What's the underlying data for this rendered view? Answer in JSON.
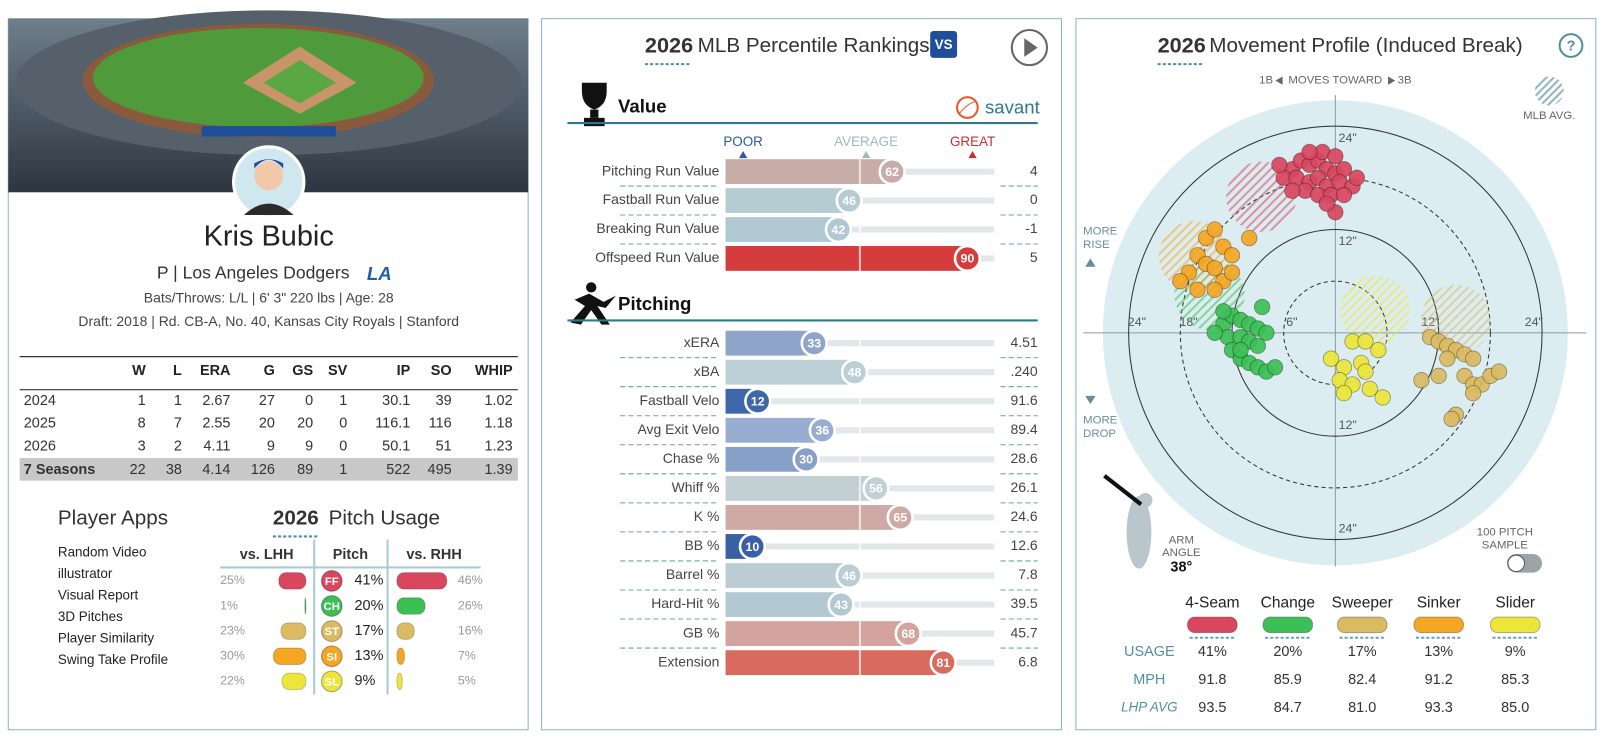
{
  "player": {
    "name": "Kris Bubic",
    "position_team": "P | Los Angeles Dodgers",
    "team_logo": "LA",
    "bio": "Bats/Throws: L/L | 6' 3\" 220 lbs | Age: 28",
    "draft": "Draft: 2018 | Rd. CB-A, No. 40, Kansas City Royals | Stanford"
  },
  "stats_table": {
    "headers": [
      "W",
      "L",
      "ERA",
      "G",
      "GS",
      "SV",
      "IP",
      "SO",
      "WHIP"
    ],
    "rows": [
      [
        "2024",
        1,
        1,
        2.67,
        27,
        0,
        1,
        30.1,
        39,
        1.02
      ],
      [
        "2025",
        8,
        7,
        2.55,
        20,
        20,
        0,
        116.1,
        116,
        1.18
      ],
      [
        "2026",
        3,
        2,
        4.11,
        9,
        9,
        0,
        50.1,
        51,
        1.23
      ]
    ],
    "total": [
      "7 Seasons",
      22,
      38,
      4.14,
      126,
      89,
      1,
      522,
      495,
      1.39
    ]
  },
  "player_apps": {
    "title": "Player Apps",
    "items": [
      "Random Video",
      "illustrator",
      "Visual Report",
      "3D Pitches",
      "Player Similarity",
      "Swing Take Profile"
    ]
  },
  "pitch_usage": {
    "year": "2026",
    "title": "Pitch Usage",
    "headers": [
      "vs. LHH",
      "Pitch",
      "vs. RHH"
    ],
    "codes": [
      "FF",
      "CH",
      "ST",
      "SI",
      "SL"
    ],
    "colors": [
      "#d9475f",
      "#3cc055",
      "#dbbb62",
      "#f5a623",
      "#ece63a"
    ],
    "vs_lhh": {
      "values": [
        25,
        1,
        23,
        30,
        22
      ],
      "value_labels": [
        "25%",
        "1%",
        "23%",
        "30%",
        "22%"
      ]
    },
    "overall": {
      "values": [
        41,
        20,
        17,
        13,
        9
      ],
      "value_labels": [
        "41%",
        "20%",
        "17%",
        "13%",
        "9%"
      ]
    },
    "vs_rhh": {
      "values": [
        46,
        26,
        16,
        7,
        5
      ],
      "value_labels": [
        "46%",
        "26%",
        "16%",
        "7%",
        "5%"
      ]
    }
  },
  "percentile_rankings": {
    "year": "2026",
    "title": "MLB Percentile Rankings",
    "logo": "VS",
    "source": "savant",
    "scale_labels": [
      "POOR",
      "AVERAGE",
      "GREAT"
    ],
    "sections": [
      {
        "title": "Value",
        "metrics": [
          {
            "label": "Pitching Run Value",
            "percentile": 62,
            "stat": "4",
            "color": "#c8aca7"
          },
          {
            "label": "Fastball Run Value",
            "percentile": 46,
            "stat": "0",
            "color": "#b6ccd3"
          },
          {
            "label": "Breaking Run Value",
            "percentile": 42,
            "stat": "-1",
            "color": "#b0c8d1"
          },
          {
            "label": "Offspeed Run Value",
            "percentile": 90,
            "stat": "5",
            "color": "#d63c3c"
          }
        ]
      },
      {
        "title": "Pitching",
        "metrics": [
          {
            "label": "xERA",
            "percentile": 33,
            "stat": "4.51",
            "color": "#8ea5c9"
          },
          {
            "label": "xBA",
            "percentile": 48,
            "stat": ".240",
            "color": "#bccfd6"
          },
          {
            "label": "Fastball Velo",
            "percentile": 12,
            "stat": "91.6",
            "color": "#3f66aa"
          },
          {
            "label": "Avg Exit Velo",
            "percentile": 36,
            "stat": "89.4",
            "color": "#98aed0"
          },
          {
            "label": "Chase %",
            "percentile": 30,
            "stat": "28.6",
            "color": "#87a0c8"
          },
          {
            "label": "Whiff %",
            "percentile": 56,
            "stat": "26.1",
            "color": "#c3d0d3"
          },
          {
            "label": "K %",
            "percentile": 65,
            "stat": "24.6",
            "color": "#cfaaa4"
          },
          {
            "label": "BB %",
            "percentile": 10,
            "stat": "12.6",
            "color": "#3a5fa4"
          },
          {
            "label": "Barrel %",
            "percentile": 46,
            "stat": "7.8",
            "color": "#bacdd3"
          },
          {
            "label": "Hard-Hit %",
            "percentile": 43,
            "stat": "39.5",
            "color": "#b3c9d1"
          },
          {
            "label": "GB %",
            "percentile": 68,
            "stat": "45.7",
            "color": "#d3a49d"
          },
          {
            "label": "Extension",
            "percentile": 81,
            "stat": "6.8",
            "color": "#d96a5e"
          }
        ]
      }
    ]
  },
  "movement_profile": {
    "year": "2026",
    "title": "Movement Profile (Induced Break)",
    "help": "?",
    "direction": [
      "1B",
      "MOVES TOWARD",
      "3B"
    ],
    "mlb_avg": "MLB AVG.",
    "more_rise": [
      "MORE",
      "RISE"
    ],
    "more_drop": [
      "MORE",
      "DROP"
    ],
    "xlim": [
      -27,
      27
    ],
    "ylim": [
      -27,
      27
    ],
    "rings": [
      {
        "value": 6,
        "label": "6\""
      },
      {
        "value": 12,
        "label": "12\""
      },
      {
        "value": 18,
        "label": "18\""
      },
      {
        "value": 24,
        "label": "24\""
      }
    ],
    "arm_angle_label": [
      "ARM",
      "ANGLE"
    ],
    "arm_angle": {
      "value": 38,
      "label": "38°"
    },
    "sample_label": [
      "100 PITCH",
      "SAMPLE"
    ],
    "series": [
      {
        "name": "4-Seam",
        "color": "#d9475f",
        "avg_x": -8.6,
        "avg_y": 15.8,
        "x": [
          -5,
          -4,
          -3,
          -2,
          -1,
          0,
          1,
          -6,
          -4.5,
          -3,
          -2,
          -1,
          0.5,
          2,
          -3.5,
          -2,
          -0.5,
          1,
          -5,
          -1.5,
          0,
          -3,
          2.5,
          0,
          -6.5,
          -1
        ],
        "y": [
          19,
          20,
          19.5,
          20,
          19,
          18.5,
          19,
          18,
          18,
          17.5,
          18,
          17,
          17.5,
          17,
          16.5,
          16,
          16,
          16,
          16.5,
          21,
          20.5,
          21,
          18,
          14,
          19.5,
          15
        ]
      },
      {
        "name": "Change",
        "color": "#3cc055",
        "avg_x": -14.6,
        "avg_y": 4.4,
        "x": [
          -13,
          -12,
          -11,
          -10,
          -9,
          -8,
          -12.5,
          -11,
          -10,
          -9,
          -12,
          -11,
          -10,
          -9,
          -8,
          -8.5,
          -13,
          -14,
          -7,
          -11
        ],
        "y": [
          1,
          2,
          1.5,
          1,
          0.5,
          0,
          -0.5,
          -0.5,
          -1,
          -1.5,
          -2,
          -3,
          -3.5,
          -4,
          -4.5,
          3,
          2.5,
          0,
          -4,
          -2
        ]
      },
      {
        "name": "Sweeper",
        "color": "#dbbb62",
        "avg_x": 14,
        "avg_y": 1.5,
        "x": [
          11,
          12,
          13,
          14,
          15,
          16,
          13,
          12,
          15,
          16,
          17,
          18,
          19,
          16,
          14,
          13.5,
          10
        ],
        "y": [
          -0.5,
          -1,
          -1.5,
          -2,
          -2.5,
          -3,
          -3,
          -5,
          -5,
          -6,
          -6,
          -5,
          -4.5,
          -7,
          -9.5,
          -10,
          -5.5
        ]
      },
      {
        "name": "Sinker",
        "color": "#f5a623",
        "avg_x": -16.4,
        "avg_y": 8.9,
        "x": [
          -15,
          -14,
          -13,
          -16,
          -15,
          -14,
          -13,
          -12,
          -16,
          -14,
          -12,
          -17,
          -10,
          -18
        ],
        "y": [
          11,
          12,
          10,
          9,
          8,
          7.5,
          6,
          9,
          5,
          5,
          7,
          7,
          11,
          6
        ]
      },
      {
        "name": "Slider",
        "color": "#ece63a",
        "avg_x": 4.6,
        "avg_y": 2.6,
        "x": [
          2,
          3.5,
          5,
          -0.5,
          1,
          3,
          0.5,
          2,
          4,
          5.5,
          1,
          3.5
        ],
        "y": [
          -1,
          -1,
          -2,
          -3,
          -4,
          -3.5,
          -5.5,
          -6,
          -6.5,
          -7.5,
          -7,
          -4.5
        ]
      }
    ],
    "table": {
      "row_labels": [
        "USAGE",
        "MPH",
        "LHP AVG"
      ],
      "usage": {
        "values": [
          41,
          20,
          17,
          13,
          9
        ],
        "value_labels": [
          "41%",
          "20%",
          "17%",
          "13%",
          "9%"
        ]
      },
      "mph": [
        "91.8",
        "85.9",
        "82.4",
        "91.2",
        "85.3"
      ],
      "lhp_avg": [
        "93.5",
        "84.7",
        "81.0",
        "93.3",
        "85.0"
      ]
    }
  }
}
